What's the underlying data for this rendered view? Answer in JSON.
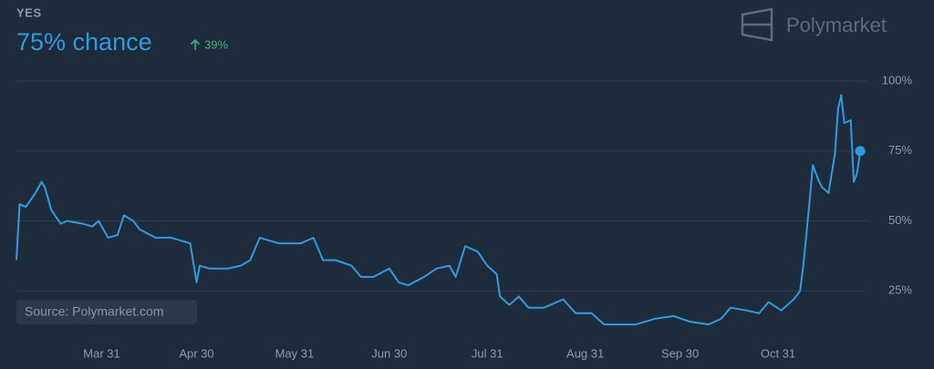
{
  "chart_data": {
    "type": "line",
    "label": "YES",
    "headline": "75% chance",
    "change": "39%",
    "brand": "Polymarket",
    "source": "Source: Polymarket.com",
    "grid": true,
    "ylim": [
      0,
      100
    ],
    "yticks": [
      {
        "value": 25,
        "label": "25%"
      },
      {
        "value": 50,
        "label": "50%"
      },
      {
        "value": 75,
        "label": "75%"
      },
      {
        "value": 100,
        "label": "100%"
      }
    ],
    "xlim": [
      "Mar 4",
      "Nov 28"
    ],
    "xticks": [
      "Mar 31",
      "Apr 30",
      "May 31",
      "Jun 30",
      "Jul 31",
      "Aug 31",
      "Sep 30",
      "Oct 31"
    ],
    "x": [
      "Mar 4",
      "Mar 5",
      "Mar 7",
      "Mar 10",
      "Mar 12",
      "Mar 13",
      "Mar 15",
      "Mar 18",
      "Mar 20",
      "Mar 25",
      "Mar 28",
      "Mar 30",
      "Apr 2",
      "Apr 5",
      "Apr 7",
      "Apr 10",
      "Apr 12",
      "Apr 17",
      "Apr 22",
      "Apr 28",
      "Apr 30",
      "May 1",
      "May 4",
      "May 10",
      "May 14",
      "May 17",
      "May 20",
      "May 23",
      "May 26",
      "Jun 2",
      "Jun 6",
      "Jun 9",
      "Jun 13",
      "Jun 18",
      "Jun 21",
      "Jun 25",
      "Jun 30",
      "Jul 3",
      "Jul 6",
      "Jul 11",
      "Jul 15",
      "Jul 19",
      "Jul 21",
      "Jul 24",
      "Jul 28",
      "Jul 31",
      "Aug 3",
      "Aug 4",
      "Aug 7",
      "Aug 10",
      "Aug 13",
      "Aug 18",
      "Aug 24",
      "Aug 28",
      "Sep 2",
      "Sep 6",
      "Sep 10",
      "Sep 16",
      "Sep 22",
      "Sep 28",
      "Oct 3",
      "Oct 9",
      "Oct 13",
      "Oct 16",
      "Oct 21",
      "Oct 25",
      "Oct 28",
      "Nov 1",
      "Nov 5",
      "Nov 7",
      "Nov 8",
      "Nov 10",
      "Nov 11",
      "Nov 13",
      "Nov 14",
      "Nov 16",
      "Nov 18",
      "Nov 19",
      "Nov 20",
      "Nov 21",
      "Nov 23",
      "Nov 24",
      "Nov 25",
      "Nov 26"
    ],
    "series": [
      {
        "name": "YES",
        "color": "#2e9be3",
        "values": [
          36,
          56,
          55,
          60,
          64,
          62,
          54,
          49,
          50,
          49,
          48,
          50,
          44,
          45,
          52,
          50,
          47,
          44,
          44,
          42,
          28,
          34,
          33,
          33,
          34,
          36,
          44,
          43,
          42,
          42,
          44,
          36,
          36,
          34,
          30,
          30,
          33,
          28,
          27,
          30,
          33,
          34,
          30,
          41,
          39,
          34,
          31,
          23,
          20,
          23,
          19,
          19,
          22,
          17,
          17,
          13,
          13,
          13,
          15,
          16,
          14,
          13,
          15,
          19,
          18,
          17,
          21,
          18,
          22,
          25,
          34,
          57,
          70,
          64,
          62,
          60,
          74,
          90,
          95,
          85,
          86,
          64,
          67,
          75
        ]
      }
    ]
  }
}
